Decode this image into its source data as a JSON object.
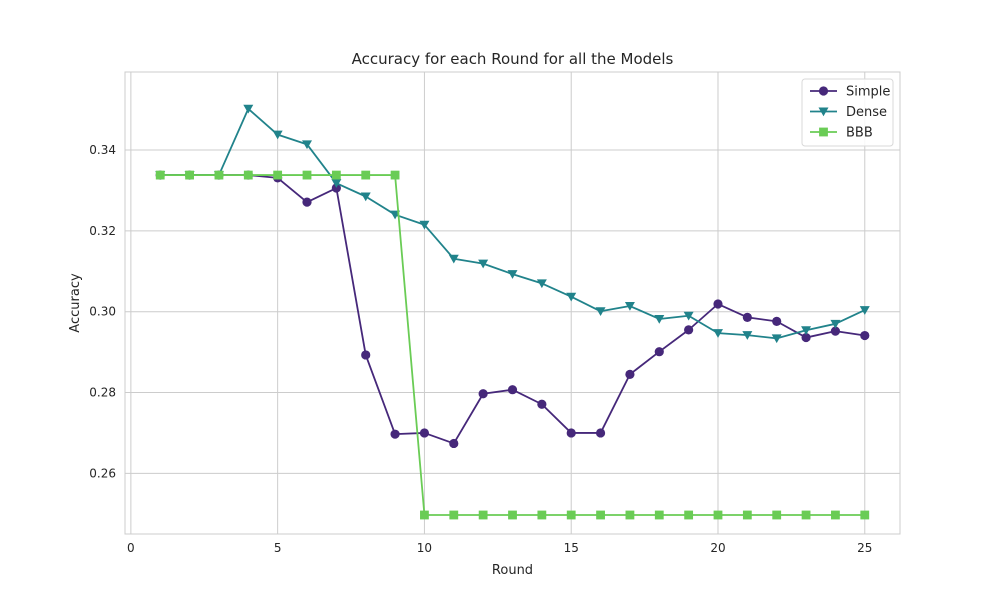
{
  "chart_data": {
    "type": "line",
    "title": "Accuracy for each Round for all the Models",
    "xlabel": "Round",
    "ylabel": "Accuracy",
    "x": [
      1,
      2,
      3,
      4,
      5,
      6,
      7,
      8,
      9,
      10,
      11,
      12,
      13,
      14,
      15,
      16,
      17,
      18,
      19,
      20,
      21,
      22,
      23,
      24,
      25
    ],
    "xlim": [
      -0.2,
      26.2
    ],
    "ylim": [
      0.245,
      0.3593
    ],
    "xticks": [
      0,
      5,
      10,
      15,
      20,
      25
    ],
    "yticks": [
      0.26,
      0.28,
      0.3,
      0.32,
      0.34
    ],
    "ytick_labels": [
      "0.26",
      "0.28",
      "0.30",
      "0.32",
      "0.34"
    ],
    "grid": true,
    "legend_position": "top-right",
    "series": [
      {
        "name": "Simple",
        "color": "#46287a",
        "marker": "circle",
        "values": [
          0.3338,
          0.3338,
          0.3338,
          0.3338,
          0.3331,
          0.3271,
          0.3306,
          0.2893,
          0.2697,
          0.27,
          0.2674,
          0.2797,
          0.2807,
          0.2771,
          0.27,
          0.27,
          0.2845,
          0.2901,
          0.2955,
          0.3019,
          0.2986,
          0.2976,
          0.2936,
          0.2952,
          0.2941
        ]
      },
      {
        "name": "Dense",
        "color": "#21838b",
        "marker": "triangle-down",
        "values": [
          0.3338,
          0.3338,
          0.3338,
          0.3502,
          0.3438,
          0.3414,
          0.3318,
          0.3285,
          0.324,
          0.3215,
          0.3131,
          0.3119,
          0.3093,
          0.307,
          0.3037,
          0.3001,
          0.3014,
          0.2982,
          0.299,
          0.2947,
          0.2942,
          0.2934,
          0.2954,
          0.297,
          0.3004
        ]
      },
      {
        "name": "BBB",
        "color": "#6acc55",
        "marker": "square",
        "values": [
          0.3338,
          0.3338,
          0.3338,
          0.3338,
          0.3338,
          0.3338,
          0.3338,
          0.3338,
          0.3338,
          0.2497,
          0.2497,
          0.2497,
          0.2497,
          0.2497,
          0.2497,
          0.2497,
          0.2497,
          0.2497,
          0.2497,
          0.2497,
          0.2497,
          0.2497,
          0.2497,
          0.2497,
          0.2497
        ]
      }
    ]
  }
}
